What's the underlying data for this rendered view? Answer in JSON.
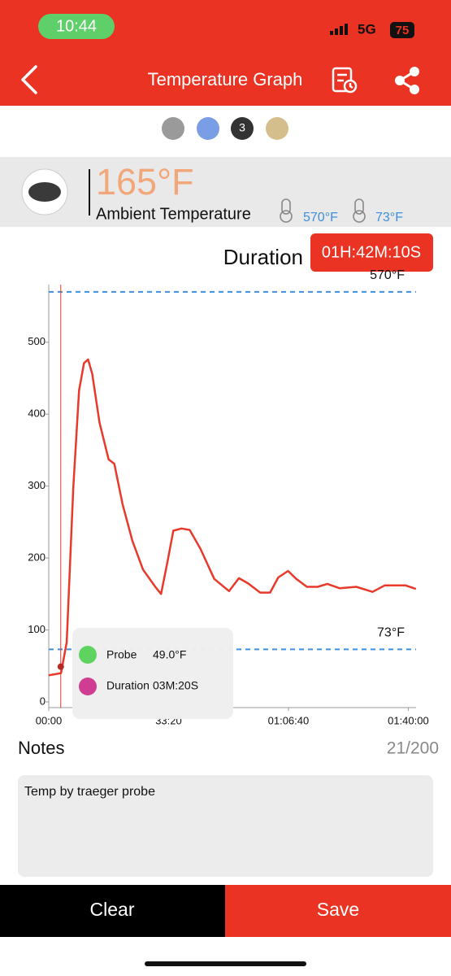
{
  "status_bar": {
    "time": "10:44",
    "network": "5G",
    "battery": "75"
  },
  "header": {
    "title": "Temperature Graph"
  },
  "probe_tabs": {
    "active_label": "3"
  },
  "ambient": {
    "temperature": "165°F",
    "label": "Ambient Temperature",
    "max": "570°F",
    "min": "73°F"
  },
  "duration": {
    "label": "Duration",
    "value": "01H:42M:10S"
  },
  "chart_data": {
    "type": "line",
    "x": [
      0,
      205,
      300,
      410,
      506,
      588,
      657,
      725,
      848,
      999,
      1094,
      1231,
      1395,
      1573,
      1778,
      1874,
      1984,
      2079,
      2216,
      2353,
      2531,
      2763,
      3010,
      3174,
      3324,
      3529,
      3694,
      3830,
      3994,
      4131,
      4309,
      4487,
      4651,
      4856,
      5130,
      5404,
      5609,
      5951,
      6129
    ],
    "series": [
      {
        "name": "Probe",
        "color": "#e8392b",
        "values": [
          37,
          40,
          83,
          298,
          433,
          471,
          476,
          456,
          388,
          337,
          331,
          275,
          224,
          184,
          160,
          150,
          196,
          238,
          241,
          239,
          213,
          171,
          154,
          172,
          165,
          152,
          152,
          173,
          182,
          171,
          160,
          160,
          164,
          158,
          160,
          153,
          162,
          162,
          157
        ]
      }
    ],
    "xlim": [
      0,
      6130
    ],
    "xticks": [
      {
        "value": 0,
        "label": "00:00"
      },
      {
        "value": 2000,
        "label": "33:20"
      },
      {
        "value": 4000,
        "label": "01:06:40"
      },
      {
        "value": 6000,
        "label": "01:40:00"
      }
    ],
    "ylim": [
      0,
      580
    ],
    "yticks": [
      0,
      100,
      200,
      300,
      400,
      500
    ],
    "reference_lines": [
      {
        "value": 570,
        "label": "570°F",
        "color": "#3d8fe0"
      },
      {
        "value": 73,
        "label": "73°F",
        "color": "#3d8fe0"
      }
    ],
    "cursor": {
      "x": 200,
      "y": 49
    },
    "tooltip": {
      "value": "49.0°F",
      "duration_label": "Duration",
      "duration": "03M:20S"
    }
  },
  "notes": {
    "title": "Notes",
    "count": "21/200",
    "text": "Temp by traeger probe"
  },
  "buttons": {
    "clear": "Clear",
    "save": "Save"
  }
}
